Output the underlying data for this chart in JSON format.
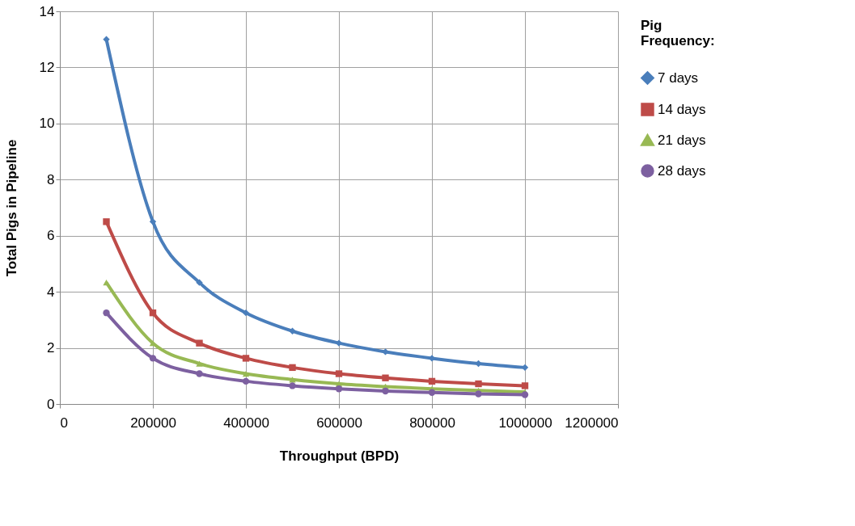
{
  "chart_data": {
    "type": "line",
    "xlabel": "Throughput (BPD)",
    "ylabel": "Total Pigs in Pipeline",
    "legend_title": "Pig Frequency:",
    "x": [
      100000,
      200000,
      300000,
      400000,
      500000,
      600000,
      700000,
      800000,
      900000,
      1000000
    ],
    "series": [
      {
        "name": "7 days",
        "color": "#4a7ebb",
        "marker": "diamond",
        "values": [
          13.0,
          6.5,
          4.33,
          3.25,
          2.6,
          2.17,
          1.86,
          1.63,
          1.44,
          1.3
        ]
      },
      {
        "name": "14 days",
        "color": "#be4b48",
        "marker": "square",
        "values": [
          6.5,
          3.25,
          2.17,
          1.63,
          1.3,
          1.08,
          0.93,
          0.81,
          0.72,
          0.65
        ]
      },
      {
        "name": "21 days",
        "color": "#98b954",
        "marker": "triangle",
        "values": [
          4.33,
          2.17,
          1.44,
          1.08,
          0.87,
          0.72,
          0.62,
          0.54,
          0.48,
          0.43
        ]
      },
      {
        "name": "28 days",
        "color": "#7d60a0",
        "marker": "circle",
        "values": [
          3.25,
          1.63,
          1.08,
          0.81,
          0.65,
          0.54,
          0.46,
          0.41,
          0.36,
          0.33
        ]
      }
    ],
    "xlim": [
      0,
      1200000
    ],
    "xticks": [
      0,
      200000,
      400000,
      600000,
      800000,
      1000000,
      1200000
    ],
    "ylim": [
      0,
      14
    ],
    "yticks": [
      0,
      2,
      4,
      6,
      8,
      10,
      12,
      14
    ],
    "grid": true,
    "legend": "right",
    "line_style": "solid"
  }
}
